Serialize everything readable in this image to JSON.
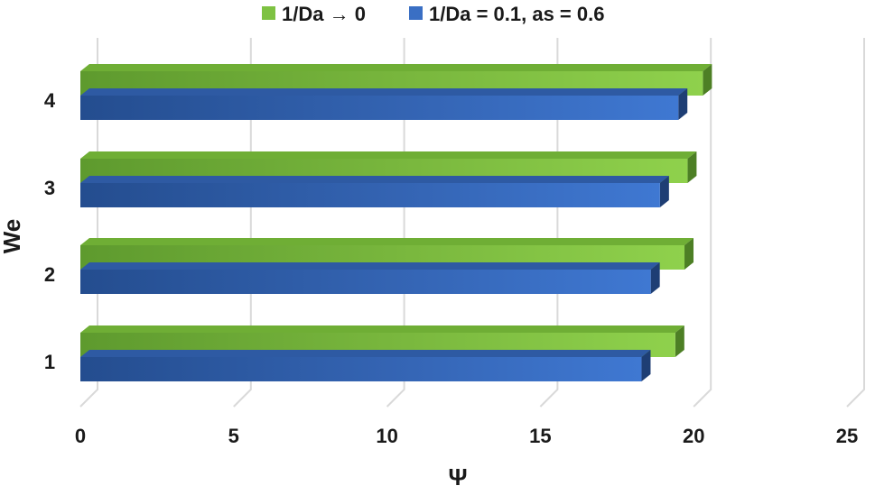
{
  "chart_data": {
    "type": "bar",
    "orientation": "horizontal",
    "style": "3d-clustered",
    "categories": [
      "1",
      "2",
      "3",
      "4"
    ],
    "series": [
      {
        "name": "1/Da → 0",
        "values": [
          19.4,
          19.7,
          19.8,
          20.3
        ],
        "color": "#7ec242"
      },
      {
        "name": "1/Da = 0.1, as = 0.6",
        "values": [
          18.3,
          18.6,
          18.9,
          19.5
        ],
        "color": "#3a6fc4"
      }
    ],
    "xlabel": "Ψ",
    "ylabel": "We",
    "xlim": [
      0,
      25
    ],
    "xticks": [
      "0",
      "5",
      "10",
      "15",
      "20",
      "25"
    ],
    "grid": true,
    "legend_position": "top"
  }
}
